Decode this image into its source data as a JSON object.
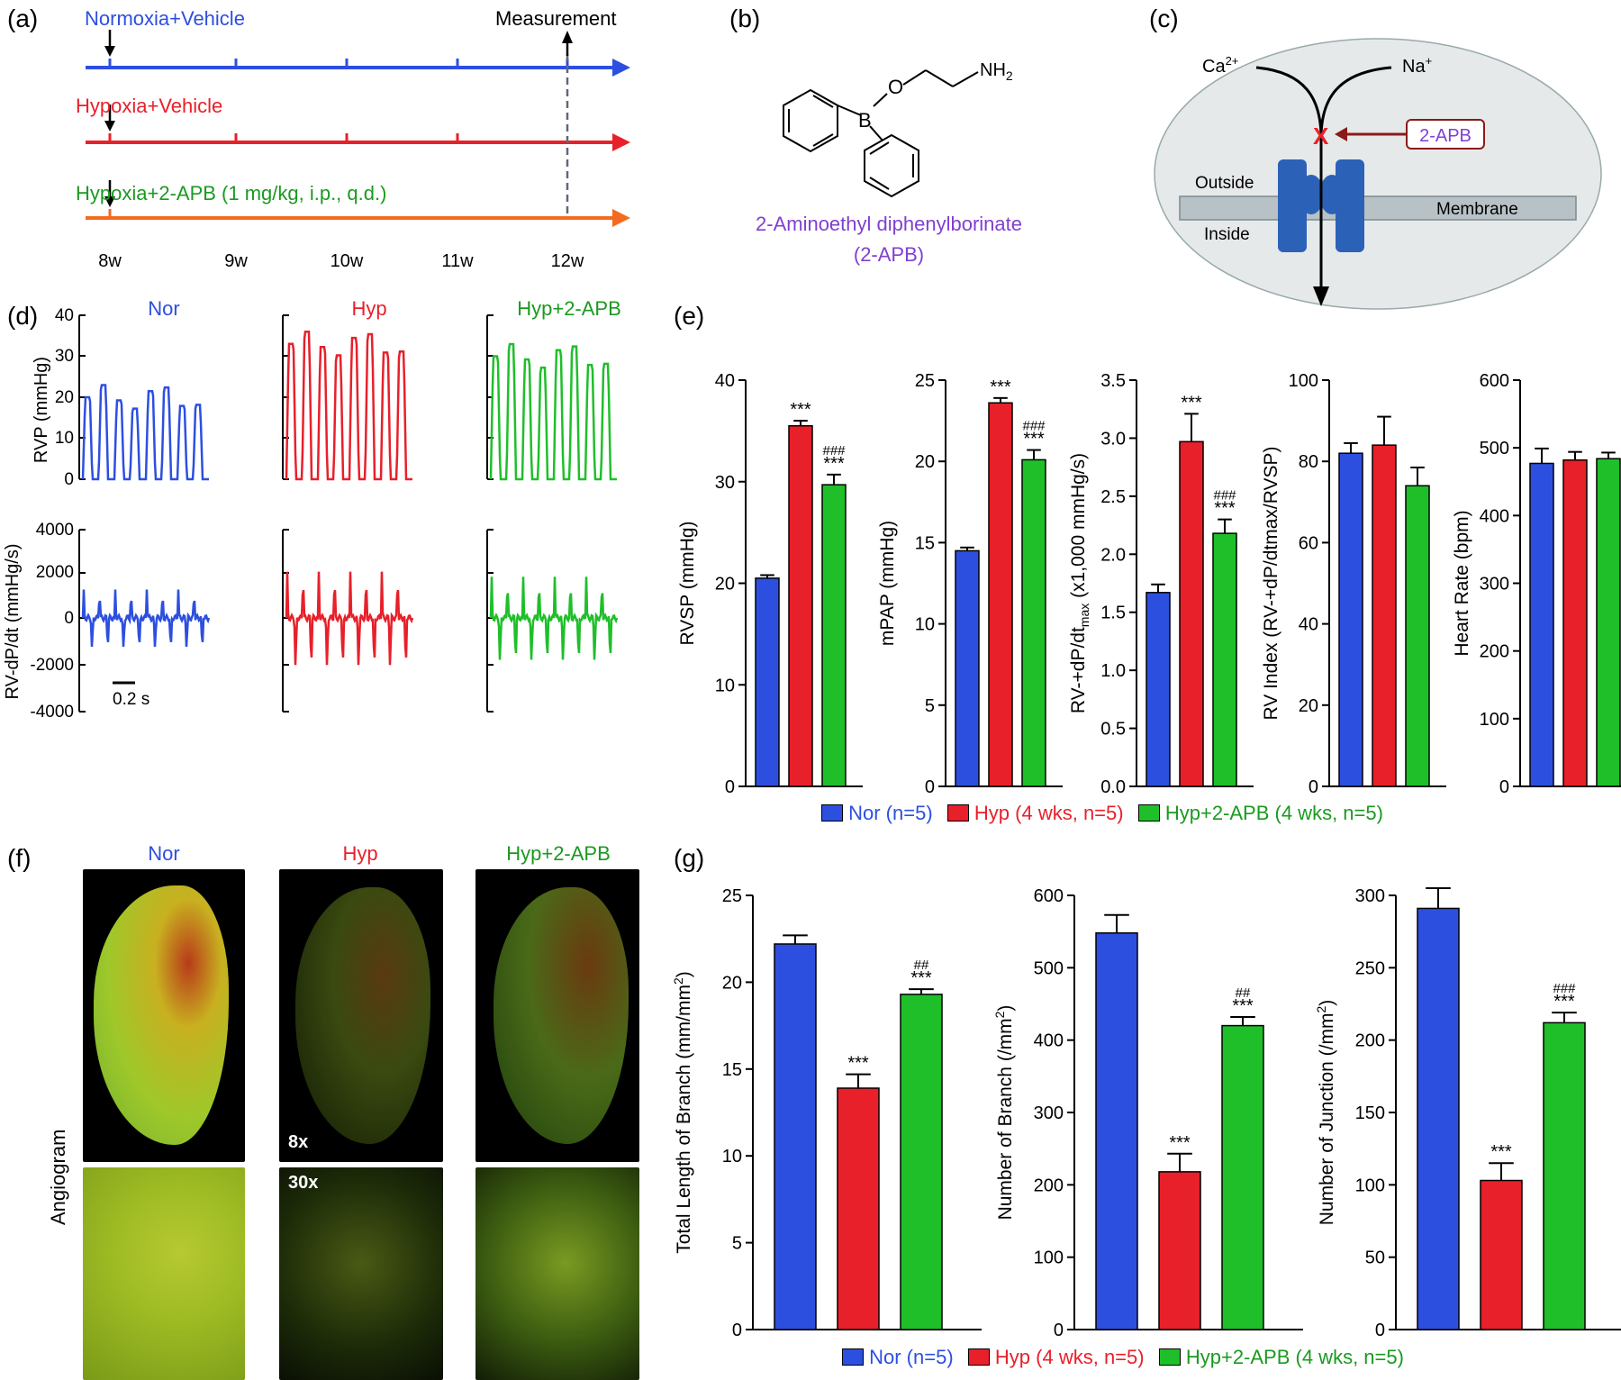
{
  "panel_labels": {
    "a": "(a)",
    "b": "(b)",
    "c": "(c)",
    "d": "(d)",
    "e": "(e)",
    "f": "(f)",
    "g": "(g)"
  },
  "colors": {
    "nor": "#2d4fe0",
    "hyp": "#e8202a",
    "apb": "#1fbf2a",
    "orange": "#f36b21",
    "purple": "#8040d0"
  },
  "timeline": {
    "groups": [
      "Normoxia+Vehicle",
      "Hypoxia+Vehicle",
      "Hypoxia+2-APB (1 mg/kg, i.p., q.d.)"
    ],
    "weeks": [
      "8w",
      "9w",
      "10w",
      "11w",
      "12w"
    ],
    "measurement": "Measurement"
  },
  "compound": {
    "name": "2-Aminoethyl diphenylborinate",
    "abbr": "(2-APB)",
    "nh2": "NH",
    "nh2_sub": "2",
    "o": "O",
    "b": "B"
  },
  "channel": {
    "ca": "Ca",
    "ca_sup": "2+",
    "na": "Na",
    "na_sup": "+",
    "outside": "Outside",
    "inside": "Inside",
    "membrane": "Membrane",
    "drug": "2-APB",
    "block": "X"
  },
  "traces": {
    "titles": [
      "Nor",
      "Hyp",
      "Hyp+2-APB"
    ],
    "rvp_ylabel": "RVP (mmHg)",
    "rvp_ticks": [
      "40",
      "30",
      "20",
      "10",
      "0"
    ],
    "dpdt_ylabel": "RV-dP/dt (mmHg/s)",
    "dpdt_ticks": [
      "4000",
      "2000",
      "0",
      "-2000",
      "-4000"
    ],
    "scale": "0.2 s"
  },
  "chart_data": [
    {
      "type": "bar",
      "panel": "e",
      "categories": [
        "Nor",
        "Hyp",
        "Hyp+2-APB"
      ],
      "values": [
        20.5,
        35.5,
        29.7
      ],
      "errors": [
        0.3,
        0.5,
        1.0
      ],
      "ylabel": "RVSP (mmHg)",
      "ylim": [
        0,
        40
      ],
      "ticks": [
        "0",
        "10",
        "20",
        "30",
        "40"
      ],
      "annotations": [
        "",
        "***",
        "###\n***"
      ]
    },
    {
      "type": "bar",
      "panel": "e",
      "categories": [
        "Nor",
        "Hyp",
        "Hyp+2-APB"
      ],
      "values": [
        14.5,
        23.6,
        20.1
      ],
      "errors": [
        0.2,
        0.3,
        0.6
      ],
      "ylabel": "mPAP (mmHg)",
      "ylim": [
        0,
        25
      ],
      "ticks": [
        "0",
        "5",
        "10",
        "15",
        "20",
        "25"
      ],
      "annotations": [
        "",
        "***",
        "###\n***"
      ]
    },
    {
      "type": "bar",
      "panel": "e",
      "categories": [
        "Nor",
        "Hyp",
        "Hyp+2-APB"
      ],
      "values": [
        1.67,
        2.97,
        2.18
      ],
      "errors": [
        0.07,
        0.24,
        0.12
      ],
      "ylabel": "RV-+dP/dt",
      "ylabel_sub": "max",
      "ylabel_tail": " (x1,000 mmHg/s)",
      "ylim": [
        0,
        3.5
      ],
      "ticks": [
        "0.0",
        "0.5",
        "1.0",
        "1.5",
        "2.0",
        "2.5",
        "3.0",
        "3.5"
      ],
      "annotations": [
        "",
        "***",
        "###\n***"
      ]
    },
    {
      "type": "bar",
      "panel": "e",
      "categories": [
        "Nor",
        "Hyp",
        "Hyp+2-APB"
      ],
      "values": [
        82,
        84,
        74
      ],
      "errors": [
        2.5,
        7,
        4.5
      ],
      "ylabel": "RV Index (RV-+dP/dtmax/RVSP)",
      "ylim": [
        0,
        100
      ],
      "ticks": [
        "0",
        "20",
        "40",
        "60",
        "80",
        "100"
      ],
      "annotations": [
        "",
        "",
        ""
      ]
    },
    {
      "type": "bar",
      "panel": "e",
      "categories": [
        "Nor",
        "Hyp",
        "Hyp+2-APB"
      ],
      "values": [
        477,
        482,
        484
      ],
      "errors": [
        22,
        12,
        9
      ],
      "ylabel": "Heart Rate (bpm)",
      "ylim": [
        0,
        600
      ],
      "ticks": [
        "0",
        "100",
        "200",
        "300",
        "400",
        "500",
        "600"
      ],
      "annotations": [
        "",
        "",
        ""
      ]
    },
    {
      "type": "bar",
      "panel": "g",
      "categories": [
        "Nor",
        "Hyp",
        "Hyp+2-APB"
      ],
      "values": [
        22.2,
        13.9,
        19.3
      ],
      "errors": [
        0.5,
        0.8,
        0.3
      ],
      "ylabel": "Total Length of Branch (mm/mm",
      "ylabel_sup": "2",
      "ylabel_tail": ")",
      "ylim": [
        0,
        25
      ],
      "ticks": [
        "0",
        "5",
        "10",
        "15",
        "20",
        "25"
      ],
      "annotations": [
        "",
        "***",
        "##\n***"
      ]
    },
    {
      "type": "bar",
      "panel": "g",
      "categories": [
        "Nor",
        "Hyp",
        "Hyp+2-APB"
      ],
      "values": [
        548,
        218,
        420
      ],
      "errors": [
        25,
        25,
        12
      ],
      "ylabel": "Number of Branch (/mm",
      "ylabel_sup": "2",
      "ylabel_tail": ")",
      "ylim": [
        0,
        600
      ],
      "ticks": [
        "0",
        "100",
        "200",
        "300",
        "400",
        "500",
        "600"
      ],
      "annotations": [
        "",
        "***",
        "##\n***"
      ]
    },
    {
      "type": "bar",
      "panel": "g",
      "categories": [
        "Nor",
        "Hyp",
        "Hyp+2-APB"
      ],
      "values": [
        291,
        103,
        212
      ],
      "errors": [
        14,
        12,
        7
      ],
      "ylabel": "Number of Junction (/mm",
      "ylabel_sup": "2",
      "ylabel_tail": ")",
      "ylim": [
        0,
        300
      ],
      "ticks": [
        "0",
        "50",
        "100",
        "150",
        "200",
        "250",
        "300"
      ],
      "annotations": [
        "",
        "***",
        "###\n***"
      ]
    }
  ],
  "legend": [
    "Nor (n=5)",
    "Hyp (4 wks, n=5)",
    "Hyp+2-APB (4 wks, n=5)"
  ],
  "angiogram": {
    "titles": [
      "Nor",
      "Hyp",
      "Hyp+2-APB"
    ],
    "side_label": "Angiogram",
    "mag_low": "8x",
    "mag_high": "30x"
  }
}
